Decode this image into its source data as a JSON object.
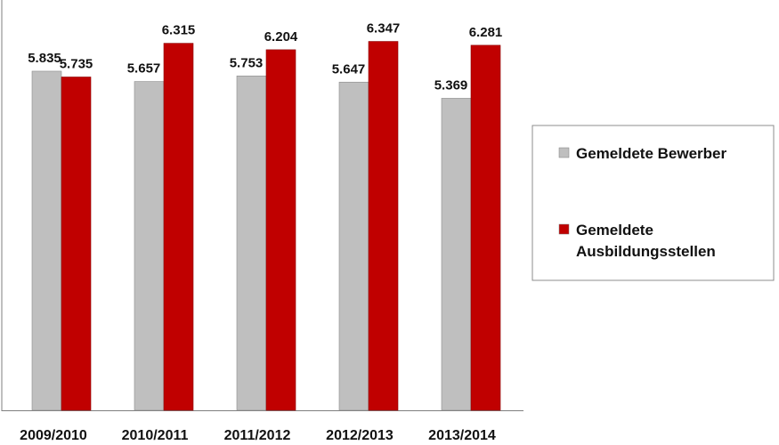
{
  "chart_data": {
    "type": "bar",
    "categories": [
      "2009/2010",
      "2010/2011",
      "2011/2012",
      "2012/2013",
      "2013/2014"
    ],
    "series": [
      {
        "name": "Gemeldete Bewerber",
        "color": "#bfbfbf",
        "values": [
          5835,
          5657,
          5753,
          5647,
          5369
        ],
        "labels": [
          "5.835",
          "5.657",
          "5.753",
          "5.647",
          "5.369"
        ]
      },
      {
        "name": "Gemeldete Ausbildungsstellen",
        "legend_lines": [
          "Gemeldete",
          "Ausbildungsstellen"
        ],
        "color": "#c00000",
        "values": [
          5735,
          6315,
          6204,
          6347,
          6281
        ],
        "labels": [
          "5.735",
          "6.315",
          "6.204",
          "6.347",
          "6.281"
        ]
      }
    ],
    "title": "",
    "xlabel": "",
    "ylabel": "",
    "ylim": [
      0,
      6700
    ],
    "grid": false,
    "legend_position": "right"
  }
}
